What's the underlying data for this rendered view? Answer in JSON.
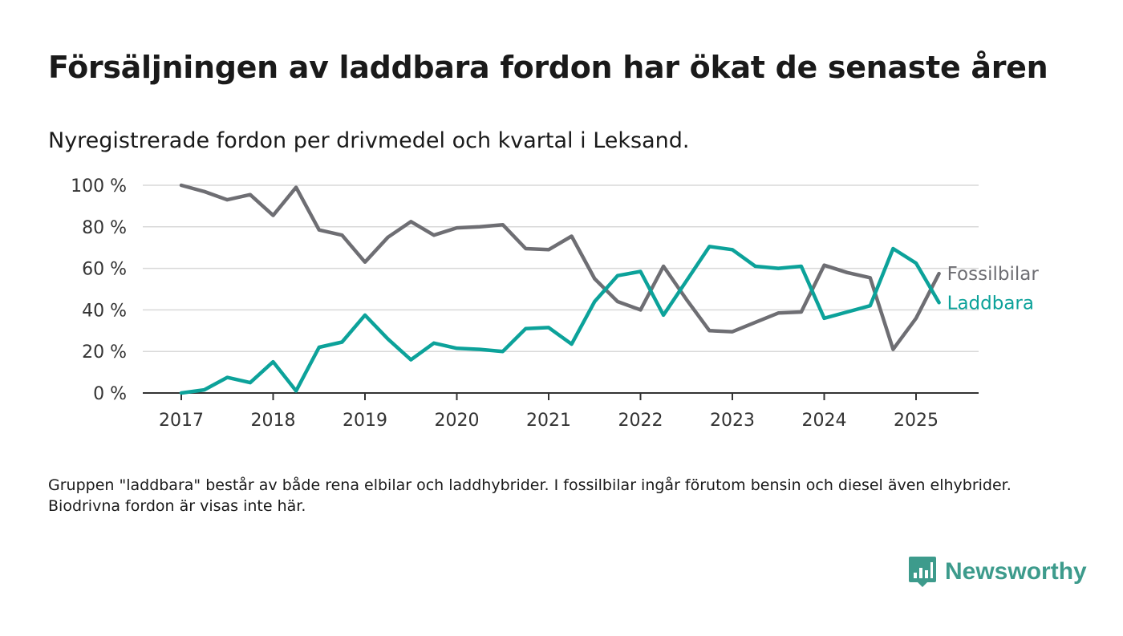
{
  "title": "Försäljningen av laddbara fordon har ökat de senaste åren",
  "subtitle": "Nyregistrerade fordon per drivmedel och kvartal i Leksand.",
  "note": "Gruppen \"laddbara\" består av både rena elbilar och laddhybrider. I fossilbilar ingår förutom bensin och diesel även elhybrider. Biodrivna fordon är visas inte här.",
  "logo": {
    "text": "Newsworthy",
    "icon": "newsworthy-chart-bubble-icon",
    "color": "#3d9b8c"
  },
  "chart_data": {
    "type": "line",
    "x_ticks": [
      "2017",
      "2018",
      "2019",
      "2020",
      "2021",
      "2022",
      "2023",
      "2024",
      "2025"
    ],
    "y_ticks": [
      "0 %",
      "20 %",
      "40 %",
      "60 %",
      "80 %",
      "100 %"
    ],
    "ylim": [
      0,
      100
    ],
    "xlim": [
      "2016-Q3",
      "2025-Q4"
    ],
    "grid": true,
    "legend": "labels at line ends (right)",
    "x": [
      "2017-Q1",
      "2017-Q2",
      "2017-Q3",
      "2017-Q4",
      "2018-Q1",
      "2018-Q2",
      "2018-Q3",
      "2018-Q4",
      "2019-Q1",
      "2019-Q2",
      "2019-Q3",
      "2019-Q4",
      "2020-Q1",
      "2020-Q2",
      "2020-Q3",
      "2020-Q4",
      "2021-Q1",
      "2021-Q2",
      "2021-Q3",
      "2021-Q4",
      "2022-Q1",
      "2022-Q2",
      "2022-Q3",
      "2022-Q4",
      "2023-Q1",
      "2023-Q2",
      "2023-Q3",
      "2023-Q4",
      "2024-Q1",
      "2024-Q2",
      "2024-Q3",
      "2024-Q4",
      "2025-Q1",
      "2025-Q2"
    ],
    "series": [
      {
        "name": "Fossilbilar",
        "color": "#6e6e73",
        "values": [
          100,
          97,
          93,
          95.5,
          85.5,
          99,
          78.5,
          76,
          63,
          75,
          82.5,
          76,
          79.5,
          80,
          81,
          69.5,
          69,
          75.5,
          55,
          44,
          40,
          61,
          45,
          30,
          29.5,
          34,
          38.5,
          39,
          61.5,
          58,
          55.5,
          21,
          36,
          57.5
        ]
      },
      {
        "name": "Laddbara",
        "color": "#0ca29a",
        "values": [
          0,
          1.5,
          7.5,
          5,
          15,
          1,
          22,
          24.5,
          37.5,
          26,
          16,
          24,
          21.5,
          21,
          20,
          31,
          31.5,
          23.5,
          44,
          56.5,
          58.5,
          37.5,
          54,
          70.5,
          69,
          61,
          60,
          61,
          36,
          39,
          42,
          69.5,
          62.5,
          43.5
        ]
      }
    ]
  }
}
